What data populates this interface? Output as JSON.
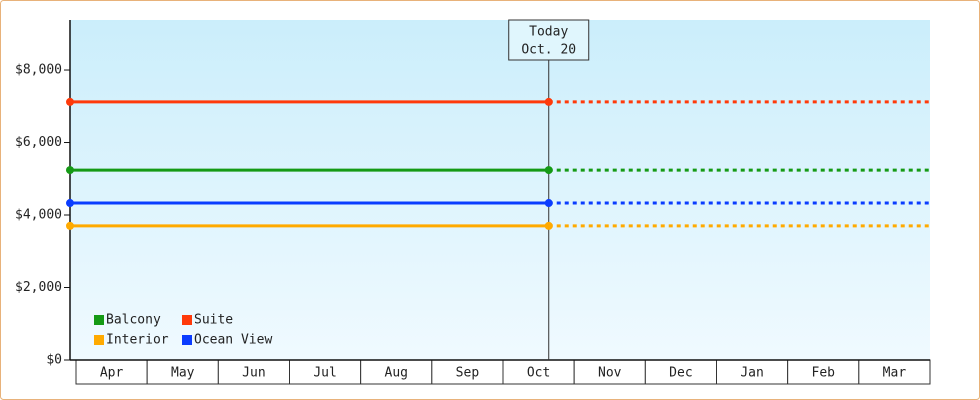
{
  "chart_data": {
    "type": "line",
    "categories": [
      "Apr",
      "May",
      "Jun",
      "Jul",
      "Aug",
      "Sep",
      "Oct",
      "Nov",
      "Dec",
      "Jan",
      "Feb",
      "Mar"
    ],
    "x": [
      0,
      6.68
    ],
    "xlim": [
      0,
      12
    ],
    "ylim": [
      0,
      9380
    ],
    "yticks": [
      {
        "value": 0,
        "label": "$0"
      },
      {
        "value": 2000,
        "label": "$2,000"
      },
      {
        "value": 4000,
        "label": "$4,000"
      },
      {
        "value": 6000,
        "label": "$6,000"
      },
      {
        "value": 8000,
        "label": "$8,000"
      }
    ],
    "projection": "dashed",
    "legend": "lower left",
    "annotation": {
      "lines": [
        "Today",
        "Oct. 20"
      ],
      "x": 6.68
    },
    "series": [
      {
        "name": "Balcony",
        "color": "#159a15",
        "values": [
          5240,
          5240
        ]
      },
      {
        "name": "Suite",
        "color": "#ff3a0a",
        "values": [
          7120,
          7120
        ]
      },
      {
        "name": "Interior",
        "color": "#ffaa00",
        "values": [
          3700,
          3700
        ]
      },
      {
        "name": "Ocean View",
        "color": "#0a3cff",
        "values": [
          4330,
          4330
        ]
      }
    ]
  }
}
